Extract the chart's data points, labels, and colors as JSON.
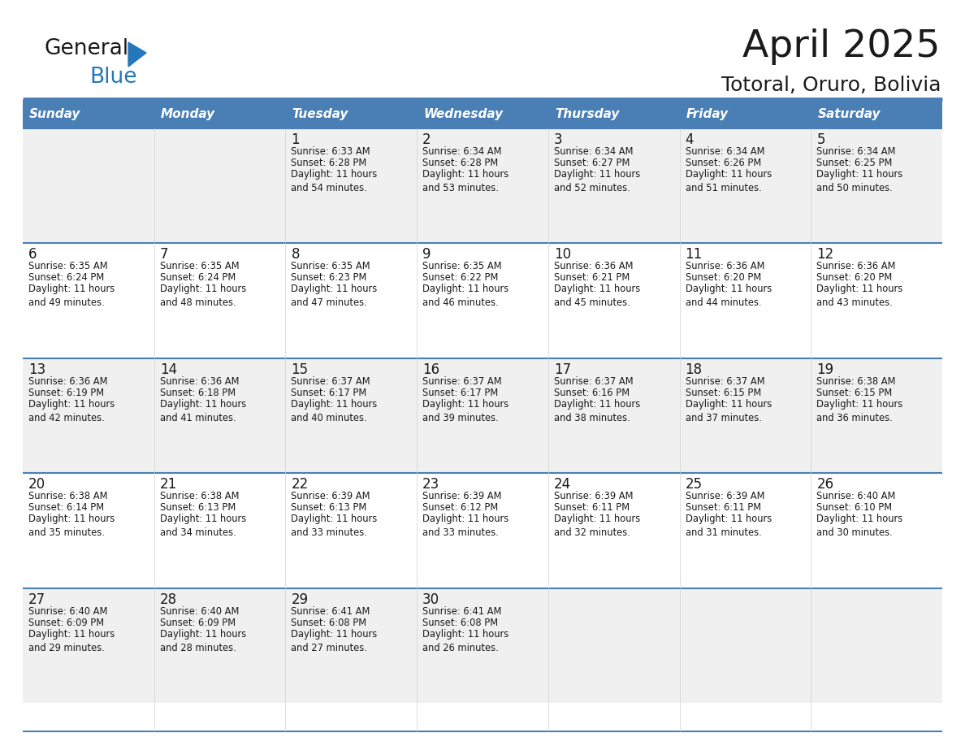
{
  "title": "April 2025",
  "subtitle": "Totoral, Oruro, Bolivia",
  "header_color": "#4a7fb5",
  "header_text_color": "#ffffff",
  "bg_color": "#ffffff",
  "row1_color": "#f0f0f0",
  "row2_color": "#ffffff",
  "border_color": "#4a7fb5",
  "separator_color": "#4a7fb5",
  "day_headers": [
    "Sunday",
    "Monday",
    "Tuesday",
    "Wednesday",
    "Thursday",
    "Friday",
    "Saturday"
  ],
  "weeks": [
    [
      {
        "day": "",
        "sunrise": "",
        "sunset": "",
        "daylight": ""
      },
      {
        "day": "",
        "sunrise": "",
        "sunset": "",
        "daylight": ""
      },
      {
        "day": "1",
        "sunrise": "Sunrise: 6:33 AM",
        "sunset": "Sunset: 6:28 PM",
        "daylight": "Daylight: 11 hours\nand 54 minutes."
      },
      {
        "day": "2",
        "sunrise": "Sunrise: 6:34 AM",
        "sunset": "Sunset: 6:28 PM",
        "daylight": "Daylight: 11 hours\nand 53 minutes."
      },
      {
        "day": "3",
        "sunrise": "Sunrise: 6:34 AM",
        "sunset": "Sunset: 6:27 PM",
        "daylight": "Daylight: 11 hours\nand 52 minutes."
      },
      {
        "day": "4",
        "sunrise": "Sunrise: 6:34 AM",
        "sunset": "Sunset: 6:26 PM",
        "daylight": "Daylight: 11 hours\nand 51 minutes."
      },
      {
        "day": "5",
        "sunrise": "Sunrise: 6:34 AM",
        "sunset": "Sunset: 6:25 PM",
        "daylight": "Daylight: 11 hours\nand 50 minutes."
      }
    ],
    [
      {
        "day": "6",
        "sunrise": "Sunrise: 6:35 AM",
        "sunset": "Sunset: 6:24 PM",
        "daylight": "Daylight: 11 hours\nand 49 minutes."
      },
      {
        "day": "7",
        "sunrise": "Sunrise: 6:35 AM",
        "sunset": "Sunset: 6:24 PM",
        "daylight": "Daylight: 11 hours\nand 48 minutes."
      },
      {
        "day": "8",
        "sunrise": "Sunrise: 6:35 AM",
        "sunset": "Sunset: 6:23 PM",
        "daylight": "Daylight: 11 hours\nand 47 minutes."
      },
      {
        "day": "9",
        "sunrise": "Sunrise: 6:35 AM",
        "sunset": "Sunset: 6:22 PM",
        "daylight": "Daylight: 11 hours\nand 46 minutes."
      },
      {
        "day": "10",
        "sunrise": "Sunrise: 6:36 AM",
        "sunset": "Sunset: 6:21 PM",
        "daylight": "Daylight: 11 hours\nand 45 minutes."
      },
      {
        "day": "11",
        "sunrise": "Sunrise: 6:36 AM",
        "sunset": "Sunset: 6:20 PM",
        "daylight": "Daylight: 11 hours\nand 44 minutes."
      },
      {
        "day": "12",
        "sunrise": "Sunrise: 6:36 AM",
        "sunset": "Sunset: 6:20 PM",
        "daylight": "Daylight: 11 hours\nand 43 minutes."
      }
    ],
    [
      {
        "day": "13",
        "sunrise": "Sunrise: 6:36 AM",
        "sunset": "Sunset: 6:19 PM",
        "daylight": "Daylight: 11 hours\nand 42 minutes."
      },
      {
        "day": "14",
        "sunrise": "Sunrise: 6:36 AM",
        "sunset": "Sunset: 6:18 PM",
        "daylight": "Daylight: 11 hours\nand 41 minutes."
      },
      {
        "day": "15",
        "sunrise": "Sunrise: 6:37 AM",
        "sunset": "Sunset: 6:17 PM",
        "daylight": "Daylight: 11 hours\nand 40 minutes."
      },
      {
        "day": "16",
        "sunrise": "Sunrise: 6:37 AM",
        "sunset": "Sunset: 6:17 PM",
        "daylight": "Daylight: 11 hours\nand 39 minutes."
      },
      {
        "day": "17",
        "sunrise": "Sunrise: 6:37 AM",
        "sunset": "Sunset: 6:16 PM",
        "daylight": "Daylight: 11 hours\nand 38 minutes."
      },
      {
        "day": "18",
        "sunrise": "Sunrise: 6:37 AM",
        "sunset": "Sunset: 6:15 PM",
        "daylight": "Daylight: 11 hours\nand 37 minutes."
      },
      {
        "day": "19",
        "sunrise": "Sunrise: 6:38 AM",
        "sunset": "Sunset: 6:15 PM",
        "daylight": "Daylight: 11 hours\nand 36 minutes."
      }
    ],
    [
      {
        "day": "20",
        "sunrise": "Sunrise: 6:38 AM",
        "sunset": "Sunset: 6:14 PM",
        "daylight": "Daylight: 11 hours\nand 35 minutes."
      },
      {
        "day": "21",
        "sunrise": "Sunrise: 6:38 AM",
        "sunset": "Sunset: 6:13 PM",
        "daylight": "Daylight: 11 hours\nand 34 minutes."
      },
      {
        "day": "22",
        "sunrise": "Sunrise: 6:39 AM",
        "sunset": "Sunset: 6:13 PM",
        "daylight": "Daylight: 11 hours\nand 33 minutes."
      },
      {
        "day": "23",
        "sunrise": "Sunrise: 6:39 AM",
        "sunset": "Sunset: 6:12 PM",
        "daylight": "Daylight: 11 hours\nand 33 minutes."
      },
      {
        "day": "24",
        "sunrise": "Sunrise: 6:39 AM",
        "sunset": "Sunset: 6:11 PM",
        "daylight": "Daylight: 11 hours\nand 32 minutes."
      },
      {
        "day": "25",
        "sunrise": "Sunrise: 6:39 AM",
        "sunset": "Sunset: 6:11 PM",
        "daylight": "Daylight: 11 hours\nand 31 minutes."
      },
      {
        "day": "26",
        "sunrise": "Sunrise: 6:40 AM",
        "sunset": "Sunset: 6:10 PM",
        "daylight": "Daylight: 11 hours\nand 30 minutes."
      }
    ],
    [
      {
        "day": "27",
        "sunrise": "Sunrise: 6:40 AM",
        "sunset": "Sunset: 6:09 PM",
        "daylight": "Daylight: 11 hours\nand 29 minutes."
      },
      {
        "day": "28",
        "sunrise": "Sunrise: 6:40 AM",
        "sunset": "Sunset: 6:09 PM",
        "daylight": "Daylight: 11 hours\nand 28 minutes."
      },
      {
        "day": "29",
        "sunrise": "Sunrise: 6:41 AM",
        "sunset": "Sunset: 6:08 PM",
        "daylight": "Daylight: 11 hours\nand 27 minutes."
      },
      {
        "day": "30",
        "sunrise": "Sunrise: 6:41 AM",
        "sunset": "Sunset: 6:08 PM",
        "daylight": "Daylight: 11 hours\nand 26 minutes."
      },
      {
        "day": "",
        "sunrise": "",
        "sunset": "",
        "daylight": ""
      },
      {
        "day": "",
        "sunrise": "",
        "sunset": "",
        "daylight": ""
      },
      {
        "day": "",
        "sunrise": "",
        "sunset": "",
        "daylight": ""
      }
    ]
  ],
  "logo_text_general": "General",
  "logo_text_blue": "Blue",
  "logo_general_color": "#1a1a1a",
  "logo_blue_color": "#2577bb",
  "logo_triangle_color": "#2577bb",
  "figsize": [
    11.88,
    9.18
  ],
  "dpi": 100
}
